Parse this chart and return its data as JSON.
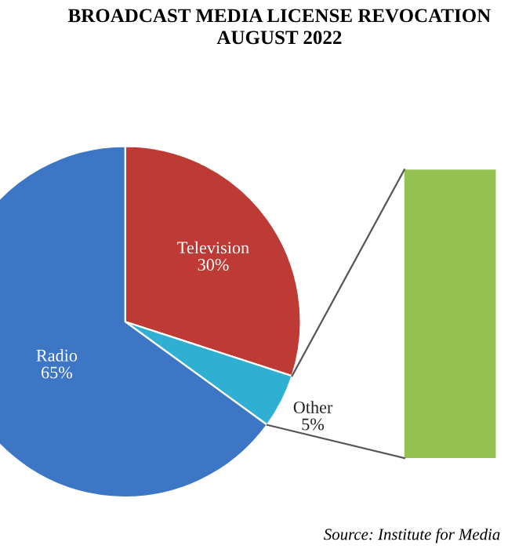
{
  "chart_data": {
    "type": "pie",
    "title": "BROADCAST MEDIA LICENSE REVOCATION\nAUGUST 2022",
    "categories": [
      "Television",
      "Other",
      "Radio"
    ],
    "values": [
      30,
      5,
      65
    ],
    "colors": [
      "#be3b35",
      "#2fb0d2",
      "#3c76c4"
    ],
    "value_labels": [
      "30%",
      "5%",
      "65%"
    ],
    "annotations": [
      "Source: Institute for Media"
    ]
  }
}
